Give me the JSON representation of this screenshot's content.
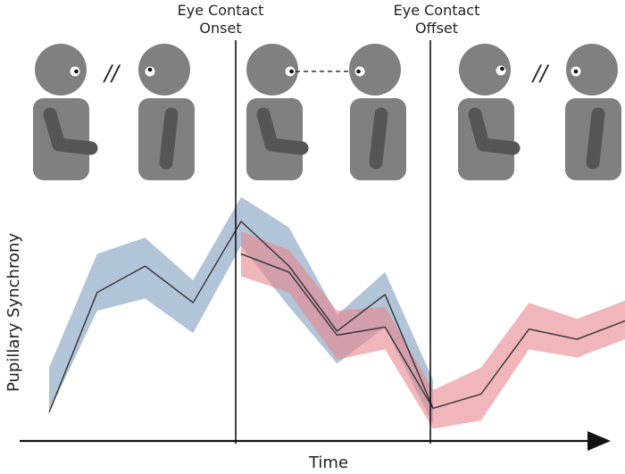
{
  "labels": {
    "onset_line1": "Eye Contact",
    "onset_line2": "Onset",
    "offset_line1": "Eye Contact",
    "offset_line2": "Offset",
    "y_axis": "Pupillary Synchrony",
    "x_axis": "Time",
    "no_contact_mark": "//"
  },
  "phases": [
    {
      "name": "before-contact",
      "gaze": "looking-away"
    },
    {
      "name": "during-contact",
      "gaze": "mutual-gaze"
    },
    {
      "name": "after-contact",
      "gaze": "looking-away"
    }
  ],
  "colors": {
    "blue_band": "#7f9cbd",
    "red_band": "#e6868a",
    "figure": "#808080",
    "arm": "#555555",
    "mean_line": "#333333",
    "axis": "#111111"
  },
  "chart_data": {
    "type": "line",
    "title": "",
    "xlabel": "Time",
    "ylabel": "Pupillary Synchrony",
    "ticks": "none",
    "grid": false,
    "legend": "none",
    "series": [
      {
        "color": "#7f9cbd",
        "mean": [
          [
            0,
            0.06
          ],
          [
            1,
            0.65
          ],
          [
            2,
            0.78
          ],
          [
            3,
            0.6
          ],
          [
            4,
            1.0
          ],
          [
            5,
            0.78
          ],
          [
            6,
            0.46
          ],
          [
            7,
            0.64
          ],
          [
            8,
            0.08
          ]
        ],
        "band": [
          [
            0,
            0.06,
            0.28
          ],
          [
            1,
            0.56,
            0.84
          ],
          [
            2,
            0.62,
            0.92
          ],
          [
            3,
            0.45,
            0.71
          ],
          [
            4,
            0.88,
            1.12
          ],
          [
            5,
            0.58,
            0.97
          ],
          [
            6,
            0.3,
            0.54
          ],
          [
            7,
            0.48,
            0.75
          ],
          [
            8,
            0.0,
            0.22
          ]
        ]
      },
      {
        "color": "#e6868a",
        "mean": [
          [
            4,
            0.84
          ],
          [
            5,
            0.75
          ],
          [
            6,
            0.44
          ],
          [
            7,
            0.48
          ],
          [
            8,
            0.08
          ],
          [
            9,
            0.15
          ],
          [
            10,
            0.47
          ],
          [
            11,
            0.42
          ],
          [
            12,
            0.51
          ]
        ],
        "band": [
          [
            4,
            0.73,
            0.95
          ],
          [
            5,
            0.65,
            0.86
          ],
          [
            6,
            0.32,
            0.56
          ],
          [
            7,
            0.37,
            0.58
          ],
          [
            8,
            -0.02,
            0.17
          ],
          [
            9,
            0.02,
            0.28
          ],
          [
            10,
            0.37,
            0.6
          ],
          [
            11,
            0.33,
            0.52
          ],
          [
            12,
            0.42,
            0.61
          ]
        ]
      }
    ],
    "events": [
      {
        "x": 4,
        "label": "Eye Contact Onset"
      },
      {
        "x": 8,
        "label": "Eye Contact Offset"
      }
    ],
    "xlim": [
      0,
      12
    ],
    "ylim": [
      -0.1,
      1.15
    ]
  }
}
